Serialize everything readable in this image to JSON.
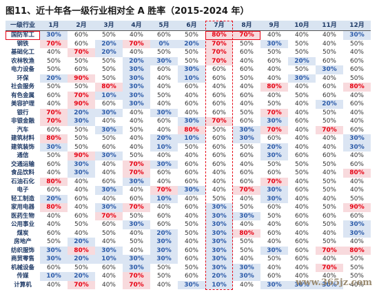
{
  "header": {
    "title": "图11、近十年各一级行业相对全 A 胜率（2015-2024 年）"
  },
  "table": {
    "columns": [
      "一级行业",
      "1月",
      "2月",
      "3月",
      "4月",
      "5月",
      "6月",
      "7月",
      "8月",
      "9月",
      "10月",
      "11月",
      "12月"
    ],
    "rows": [
      [
        "国防军工",
        "30%",
        "60%",
        "50%",
        "40%",
        "60%",
        "50%",
        "80%",
        "70%",
        "40%",
        "40%",
        "40%",
        "30%"
      ],
      [
        "钢铁",
        "70%",
        "60%",
        "20%",
        "70%",
        "0%",
        "20%",
        "70%",
        "50%",
        "30%",
        "50%",
        "40%",
        "50%"
      ],
      [
        "基础化工",
        "40%",
        "70%",
        "20%",
        "40%",
        "50%",
        "50%",
        "70%",
        "60%",
        "50%",
        "50%",
        "50%",
        "40%"
      ],
      [
        "农林牧渔",
        "50%",
        "50%",
        "50%",
        "20%",
        "30%",
        "50%",
        "70%",
        "40%",
        "60%",
        "20%",
        "60%",
        "60%"
      ],
      [
        "电力设备",
        "50%",
        "60%",
        "50%",
        "30%",
        "60%",
        "30%",
        "60%",
        "60%",
        "40%",
        "50%",
        "30%",
        "60%"
      ],
      [
        "环保",
        "20%",
        "90%",
        "50%",
        "30%",
        "40%",
        "10%",
        "60%",
        "50%",
        "40%",
        "30%",
        "40%",
        "50%"
      ],
      [
        "社会服务",
        "50%",
        "50%",
        "80%",
        "30%",
        "40%",
        "60%",
        "40%",
        "40%",
        "80%",
        "40%",
        "60%",
        "80%"
      ],
      [
        "有色金属",
        "60%",
        "70%",
        "10%",
        "30%",
        "50%",
        "40%",
        "60%",
        "60%",
        "40%",
        "50%",
        "60%",
        "40%"
      ],
      [
        "美容护理",
        "40%",
        "90%",
        "60%",
        "30%",
        "40%",
        "60%",
        "60%",
        "40%",
        "50%",
        "40%",
        "20%",
        "60%"
      ],
      [
        "银行",
        "70%",
        "20%",
        "30%",
        "40%",
        "30%",
        "40%",
        "60%",
        "50%",
        "70%",
        "40%",
        "50%",
        "40%"
      ],
      [
        "非银金融",
        "70%",
        "30%",
        "40%",
        "40%",
        "60%",
        "30%",
        "70%",
        "60%",
        "30%",
        "60%",
        "50%",
        "40%"
      ],
      [
        "汽车",
        "60%",
        "50%",
        "30%",
        "50%",
        "40%",
        "80%",
        "50%",
        "30%",
        "70%",
        "40%",
        "70%",
        "60%"
      ],
      [
        "建筑材料",
        "80%",
        "50%",
        "50%",
        "40%",
        "20%",
        "10%",
        "60%",
        "30%",
        "60%",
        "40%",
        "40%",
        "30%"
      ],
      [
        "建筑装饰",
        "30%",
        "50%",
        "60%",
        "40%",
        "10%",
        "50%",
        "60%",
        "50%",
        "20%",
        "40%",
        "40%",
        "30%"
      ],
      [
        "通信",
        "50%",
        "90%",
        "30%",
        "50%",
        "40%",
        "40%",
        "60%",
        "60%",
        "30%",
        "60%",
        "60%",
        "40%"
      ],
      [
        "交通运输",
        "60%",
        "30%",
        "40%",
        "70%",
        "30%",
        "60%",
        "60%",
        "40%",
        "50%",
        "50%",
        "50%",
        "60%"
      ],
      [
        "食品饮料",
        "40%",
        "30%",
        "40%",
        "70%",
        "60%",
        "60%",
        "40%",
        "60%",
        "60%",
        "50%",
        "40%",
        "80%"
      ],
      [
        "石油石化",
        "80%",
        "40%",
        "60%",
        "30%",
        "40%",
        "60%",
        "40%",
        "60%",
        "70%",
        "40%",
        "50%",
        "40%"
      ],
      [
        "电子",
        "60%",
        "40%",
        "30%",
        "40%",
        "70%",
        "30%",
        "40%",
        "70%",
        "30%",
        "60%",
        "50%",
        "40%"
      ],
      [
        "轻工制造",
        "20%",
        "60%",
        "40%",
        "60%",
        "10%",
        "40%",
        "50%",
        "40%",
        "30%",
        "40%",
        "40%",
        "50%"
      ],
      [
        "家用电器",
        "80%",
        "40%",
        "30%",
        "70%",
        "40%",
        "60%",
        "30%",
        "50%",
        "60%",
        "40%",
        "50%",
        "90%"
      ],
      [
        "医药生物",
        "40%",
        "60%",
        "70%",
        "50%",
        "60%",
        "40%",
        "30%",
        "30%",
        "50%",
        "60%",
        "60%",
        "60%"
      ],
      [
        "公用事业",
        "40%",
        "50%",
        "60%",
        "30%",
        "60%",
        "50%",
        "30%",
        "40%",
        "40%",
        "60%",
        "50%",
        "30%"
      ],
      [
        "煤炭",
        "60%",
        "40%",
        "50%",
        "40%",
        "20%",
        "50%",
        "30%",
        "80%",
        "60%",
        "40%",
        "40%",
        "30%"
      ],
      [
        "房地产",
        "50%",
        "20%",
        "40%",
        "50%",
        "30%",
        "40%",
        "30%",
        "50%",
        "40%",
        "60%",
        "50%",
        "40%"
      ],
      [
        "纺织服饰",
        "30%",
        "80%",
        "30%",
        "40%",
        "30%",
        "60%",
        "30%",
        "50%",
        "30%",
        "60%",
        "70%",
        "80%"
      ],
      [
        "商贸零售",
        "30%",
        "20%",
        "10%",
        "30%",
        "30%",
        "60%",
        "30%",
        "40%",
        "50%",
        "60%",
        "40%",
        "50%"
      ],
      [
        "机械设备",
        "60%",
        "50%",
        "60%",
        "30%",
        "50%",
        "50%",
        "30%",
        "30%",
        "40%",
        "40%",
        "70%",
        "50%"
      ],
      [
        "传媒",
        "10%",
        "20%",
        "40%",
        "70%",
        "50%",
        "60%",
        "20%",
        "30%",
        "60%",
        "40%",
        "40%",
        "50%"
      ],
      [
        "计算机",
        "40%",
        "70%",
        "40%",
        "70%",
        "40%",
        "30%",
        "10%",
        "40%",
        "30%",
        "30%",
        "30%",
        "40%"
      ]
    ]
  },
  "watermark": "www.365jz.com"
}
